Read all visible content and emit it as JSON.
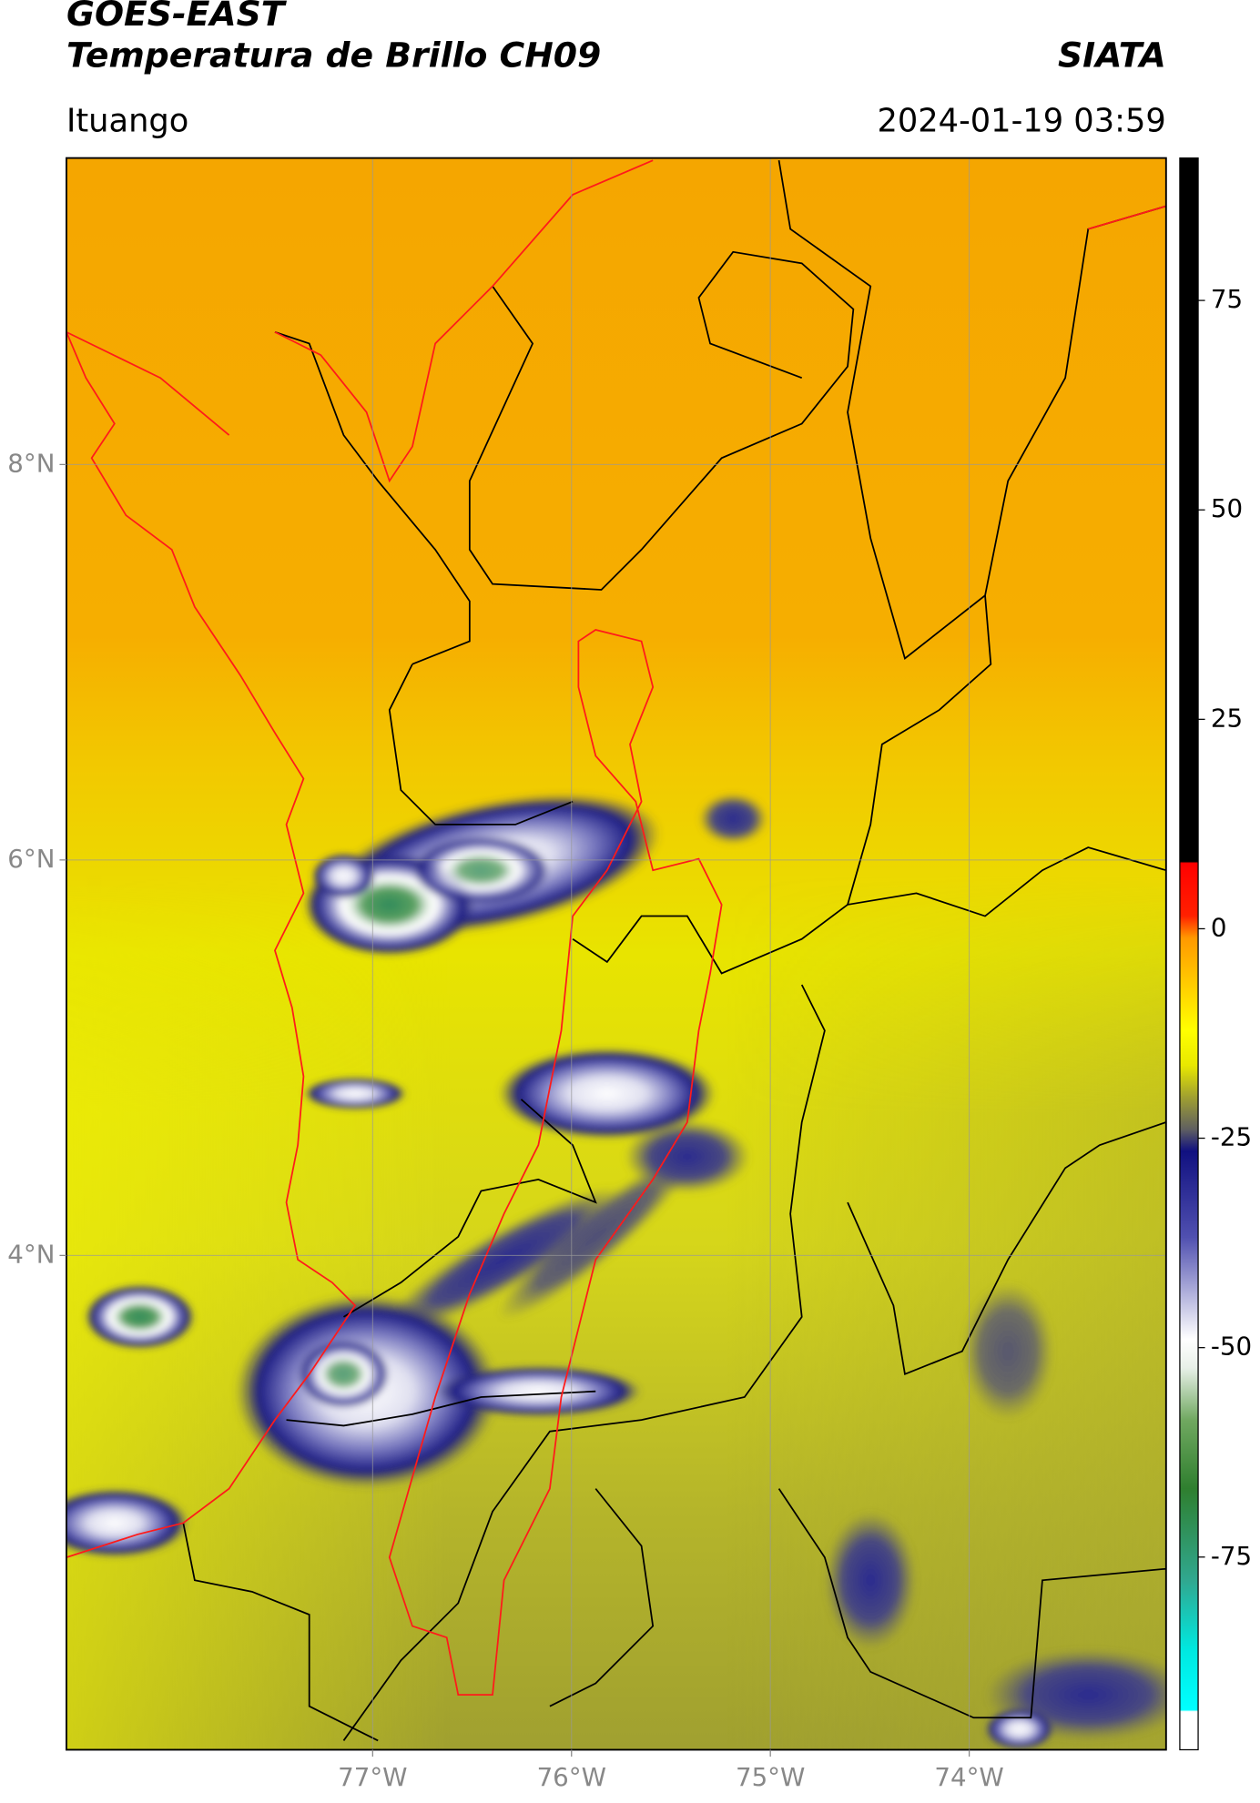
{
  "header": {
    "title": "GOES-EAST",
    "subtitle": "Temperatura de Brillo CH09",
    "org": "SIATA",
    "location": "Ituango",
    "datetime": "2024-01-19 03:59"
  },
  "map": {
    "lon_range": [
      -78.54,
      -73.01
    ],
    "lat_range": [
      1.5,
      9.55
    ],
    "lon_ticks": [
      {
        "value": -77,
        "label": "77°W"
      },
      {
        "value": -76,
        "label": "76°W"
      },
      {
        "value": -75,
        "label": "75°W"
      },
      {
        "value": -74,
        "label": "74°W"
      }
    ],
    "lat_ticks": [
      {
        "value": 8,
        "label": "8°N"
      },
      {
        "value": 6,
        "label": "6°N"
      },
      {
        "value": 4,
        "label": "4°N"
      }
    ]
  },
  "colorbar": {
    "range": [
      -98,
      92
    ],
    "ticks": [
      75,
      50,
      25,
      0,
      -25,
      -50,
      -75
    ]
  }
}
